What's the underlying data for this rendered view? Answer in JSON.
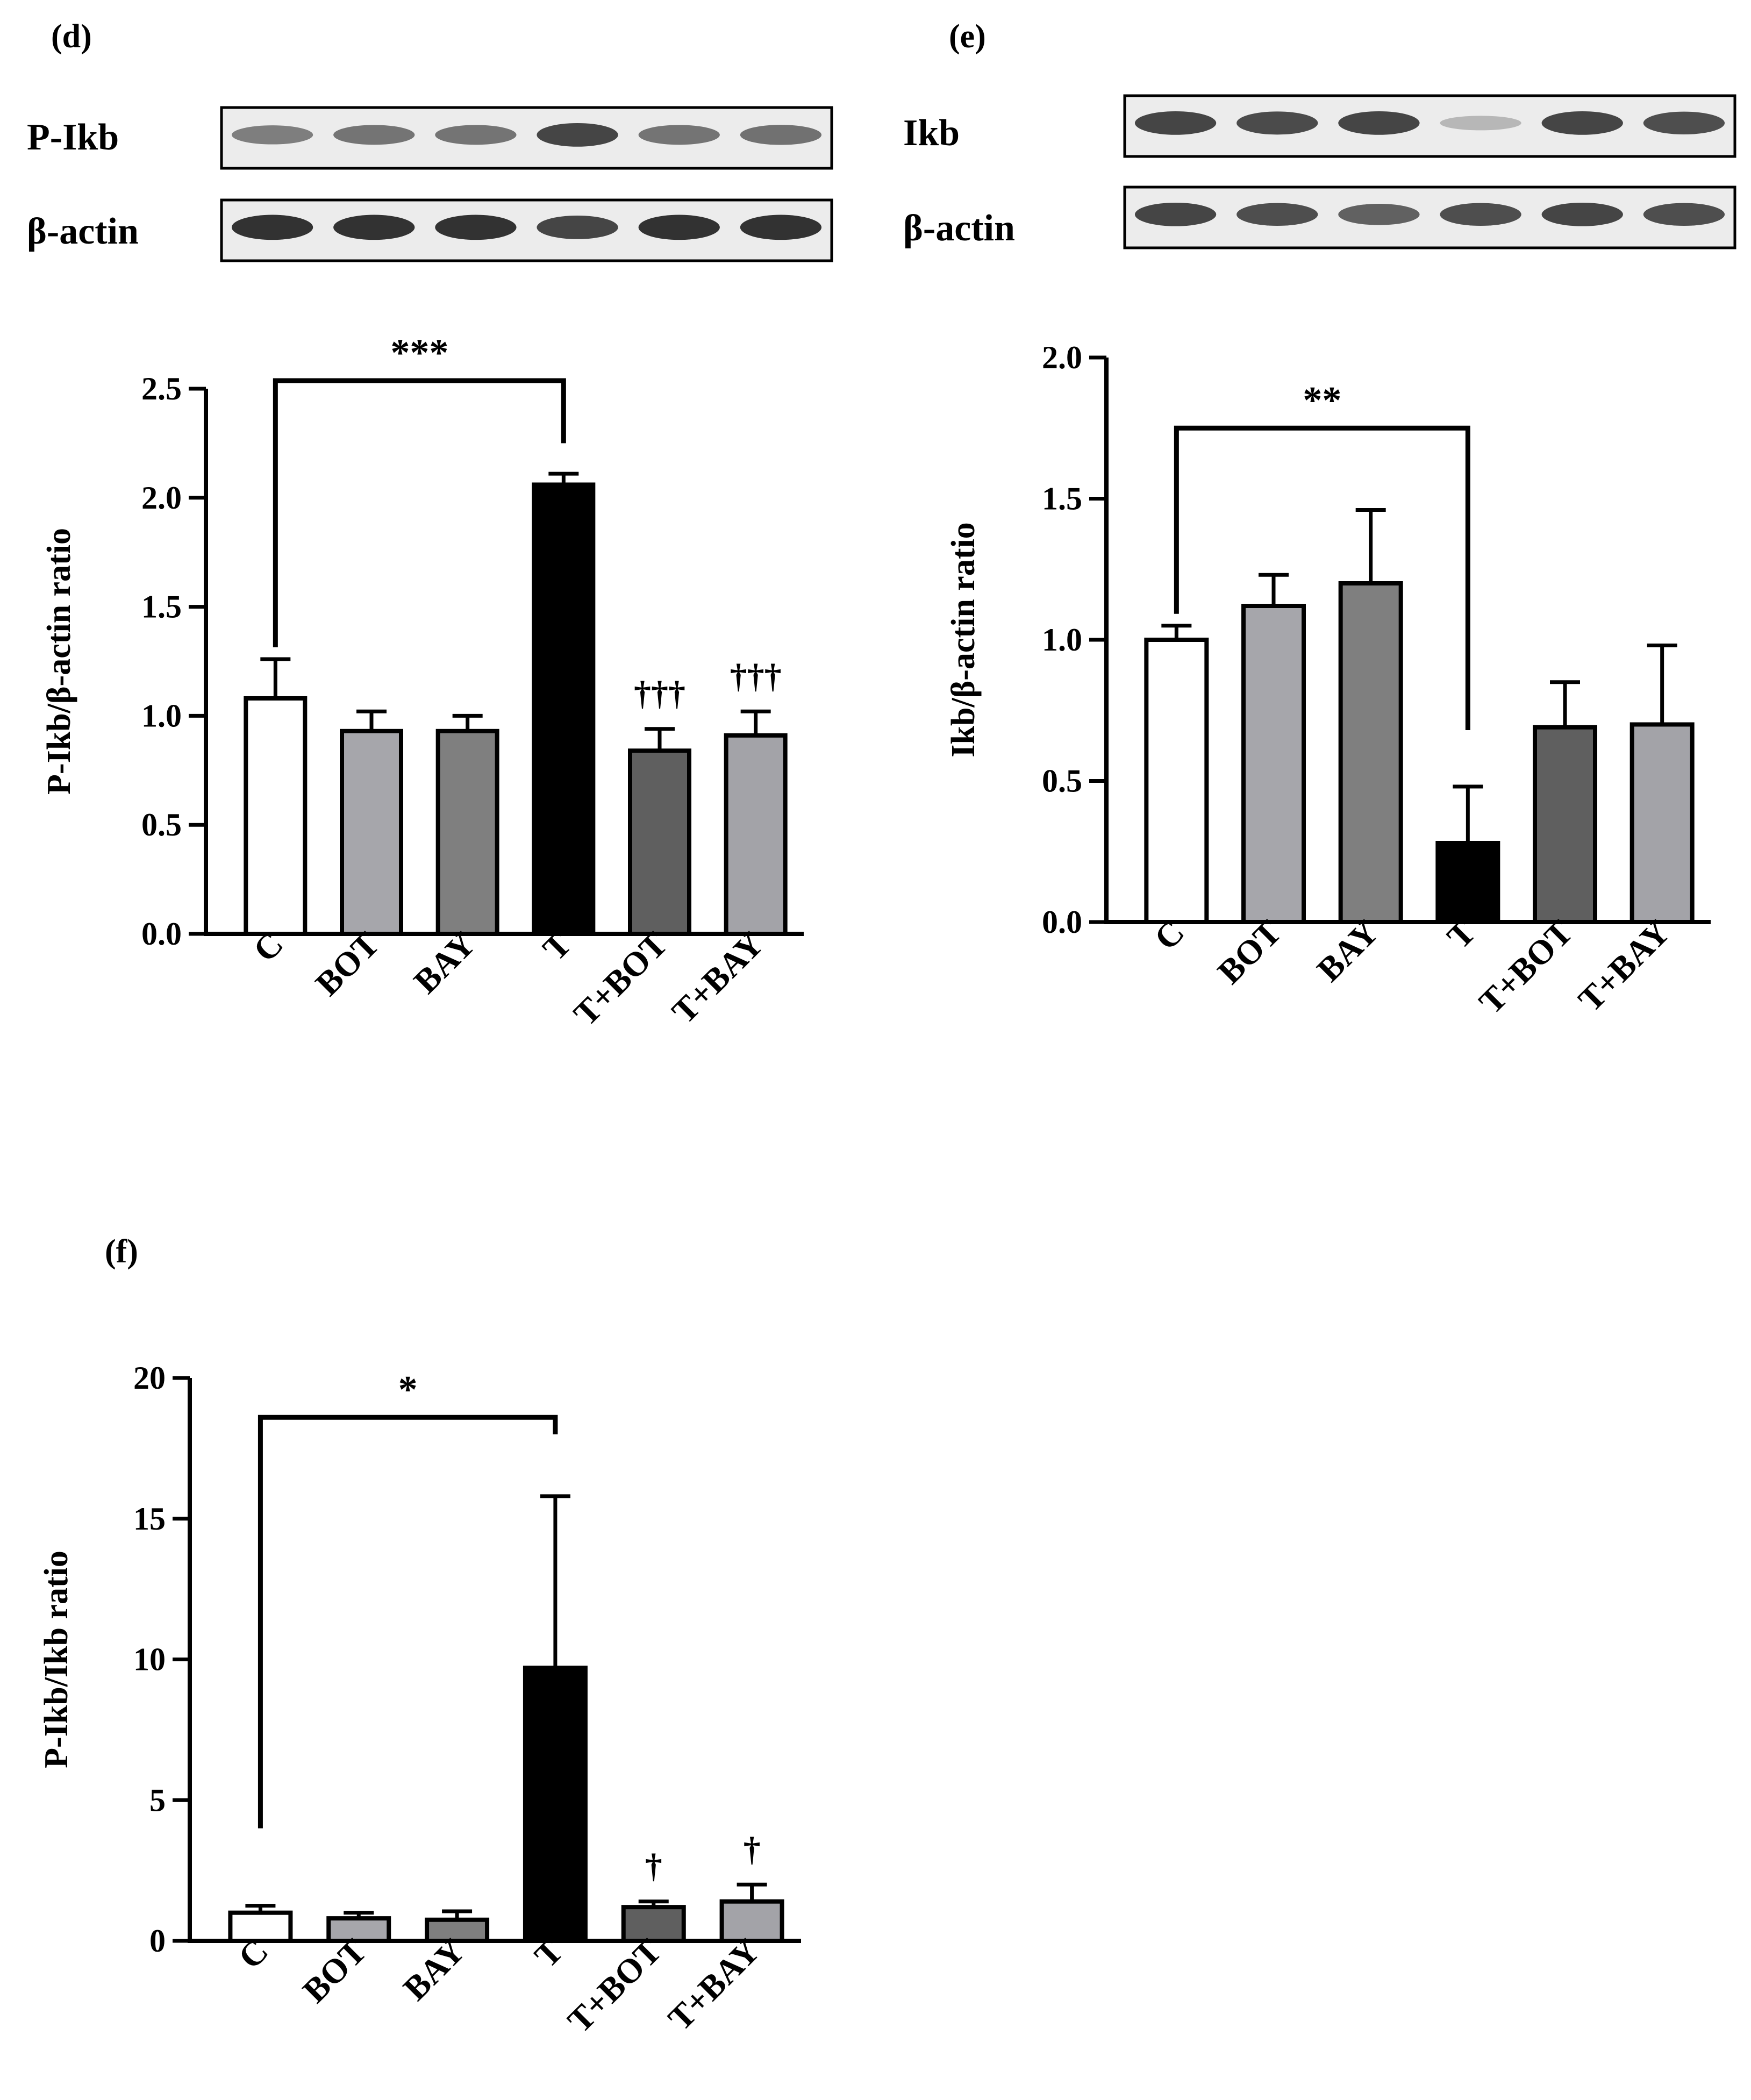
{
  "colors": {
    "C": "#ffffff",
    "BOT": "#a6a6ab",
    "BAY": "#7f7f7f",
    "T": "#000000",
    "T+BOT": "#5f5f5f",
    "T+BAY": "#a3a3a8",
    "axis": "#000000"
  },
  "blots": [
    {
      "panel_label": "(d)",
      "rows": [
        {
          "label": "P-Ikb",
          "band_intensity": [
            0.55,
            0.6,
            0.6,
            0.85,
            0.6,
            0.62
          ]
        },
        {
          "label": "β-actin",
          "band_intensity": [
            0.95,
            0.95,
            0.95,
            0.85,
            0.95,
            0.95
          ]
        }
      ]
    },
    {
      "panel_label": "(e)",
      "rows": [
        {
          "label": "Ikb",
          "band_intensity": [
            0.85,
            0.82,
            0.85,
            0.25,
            0.85,
            0.8
          ]
        },
        {
          "label": "β-actin",
          "band_intensity": [
            0.85,
            0.8,
            0.7,
            0.8,
            0.85,
            0.8
          ]
        }
      ]
    }
  ],
  "chart_data": [
    {
      "type": "bar",
      "panel_label": "(d)",
      "categories": [
        "C",
        "BOT",
        "BAY",
        "T",
        "T+BOT",
        "T+BAY"
      ],
      "values": [
        1.08,
        0.93,
        0.93,
        2.06,
        0.84,
        0.91
      ],
      "errors": [
        0.18,
        0.09,
        0.07,
        0.05,
        0.1,
        0.11
      ],
      "ylabel": "P-Ikb/β-actin ratio",
      "ylim": [
        0,
        2.5
      ],
      "yticks": [
        "0.0",
        "0.5",
        "1.0",
        "1.5",
        "2.0",
        "2.5"
      ],
      "annotations": [
        {
          "type": "bracket",
          "from": "C",
          "to": "T",
          "text": "***"
        },
        {
          "type": "marker",
          "at": "T+BOT",
          "text": "†††"
        },
        {
          "type": "marker",
          "at": "T+BAY",
          "text": "†††"
        }
      ]
    },
    {
      "type": "bar",
      "panel_label": "(e)",
      "categories": [
        "C",
        "BOT",
        "BAY",
        "T",
        "T+BOT",
        "T+BAY"
      ],
      "values": [
        1.0,
        1.12,
        1.2,
        0.28,
        0.69,
        0.7
      ],
      "errors": [
        0.05,
        0.11,
        0.26,
        0.2,
        0.16,
        0.28
      ],
      "ylabel": "Ikb/β-actin ratio",
      "ylim": [
        0,
        2.0
      ],
      "yticks": [
        "0.0",
        "0.5",
        "1.0",
        "1.5",
        "2.0"
      ],
      "annotations": [
        {
          "type": "bracket",
          "from": "C",
          "to": "T",
          "text": "**"
        }
      ]
    },
    {
      "type": "bar",
      "panel_label": "(f)",
      "categories": [
        "C",
        "BOT",
        "BAY",
        "T",
        "T+BOT",
        "T+BAY"
      ],
      "values": [
        1.0,
        0.8,
        0.75,
        9.7,
        1.2,
        1.4
      ],
      "errors": [
        0.25,
        0.2,
        0.3,
        6.1,
        0.2,
        0.6
      ],
      "ylabel": "P-Ikb/Ikb ratio",
      "ylim": [
        0,
        20
      ],
      "yticks": [
        "0",
        "5",
        "10",
        "15",
        "20"
      ],
      "annotations": [
        {
          "type": "bracket",
          "from": "C",
          "to": "T",
          "text": "*"
        },
        {
          "type": "marker",
          "at": "T+BOT",
          "text": "†"
        },
        {
          "type": "marker",
          "at": "T+BAY",
          "text": "†"
        }
      ]
    }
  ]
}
